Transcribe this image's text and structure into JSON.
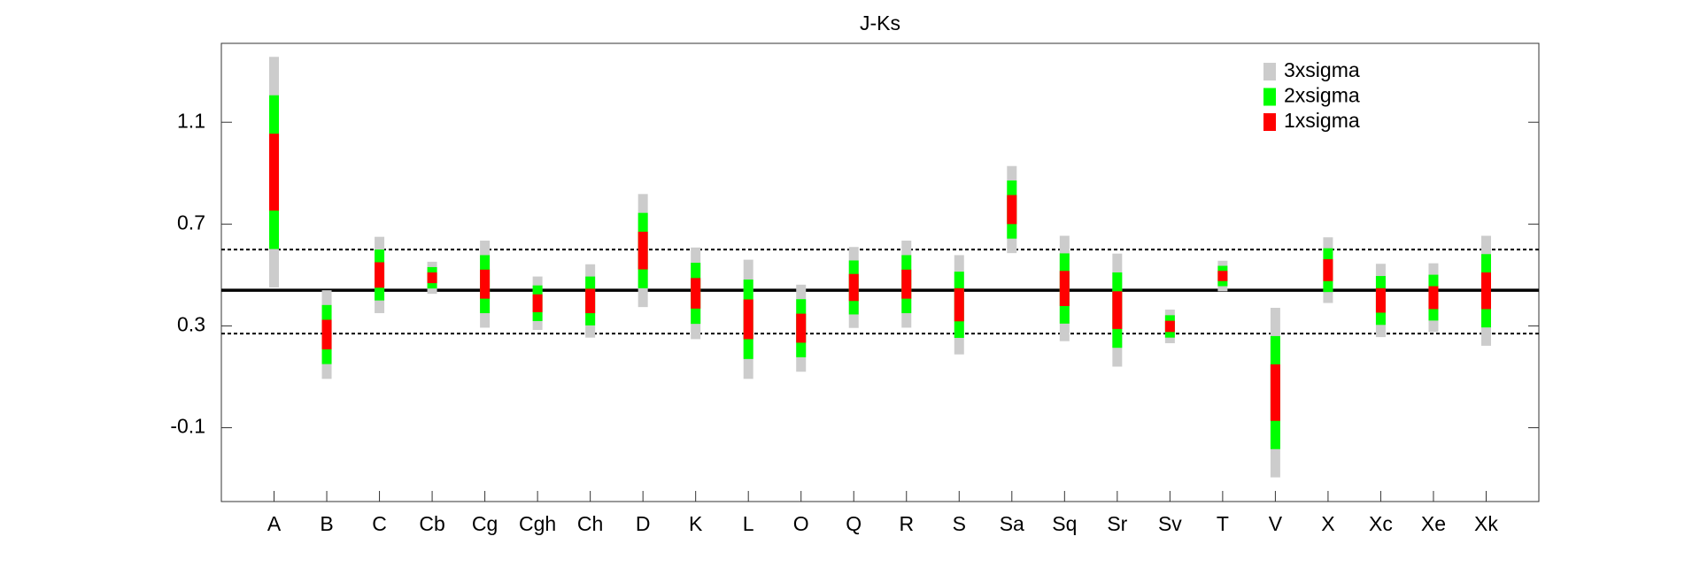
{
  "chart_data": {
    "type": "sigma-bars",
    "title": "J-Ks",
    "categories": [
      "A",
      "B",
      "C",
      "Cb",
      "Cg",
      "Cgh",
      "Ch",
      "D",
      "K",
      "L",
      "O",
      "Q",
      "R",
      "S",
      "Sa",
      "Sq",
      "Sr",
      "Sv",
      "T",
      "V",
      "X",
      "Xc",
      "Xe",
      "Xk"
    ],
    "values": [
      0.904,
      0.266,
      0.5,
      0.489,
      0.464,
      0.389,
      0.398,
      0.596,
      0.428,
      0.326,
      0.291,
      0.451,
      0.464,
      0.383,
      0.757,
      0.447,
      0.362,
      0.298,
      0.496,
      0.038,
      0.519,
      0.4,
      0.411,
      0.438
    ],
    "sigma": [
      0.151,
      0.058,
      0.05,
      0.021,
      0.057,
      0.035,
      0.048,
      0.074,
      0.06,
      0.078,
      0.057,
      0.053,
      0.057,
      0.065,
      0.057,
      0.069,
      0.074,
      0.022,
      0.02,
      0.111,
      0.043,
      0.048,
      0.045,
      0.072
    ],
    "bands": [
      {
        "name": "3xsigma",
        "multiplier": 3,
        "color": "#cccccc"
      },
      {
        "name": "2xsigma",
        "multiplier": 2,
        "color": "#00ff00"
      },
      {
        "name": "1xsigma",
        "multiplier": 1,
        "color": "#ff0000"
      }
    ],
    "hlines": [
      {
        "value": 0.44,
        "style": "solid"
      },
      {
        "value": 0.6,
        "style": "dotted"
      },
      {
        "value": 0.27,
        "style": "dotted"
      }
    ],
    "ylim": [
      -0.39,
      1.41
    ],
    "yticks": [
      -0.1,
      0.3,
      0.7,
      1.1
    ],
    "legend": "upper right"
  }
}
